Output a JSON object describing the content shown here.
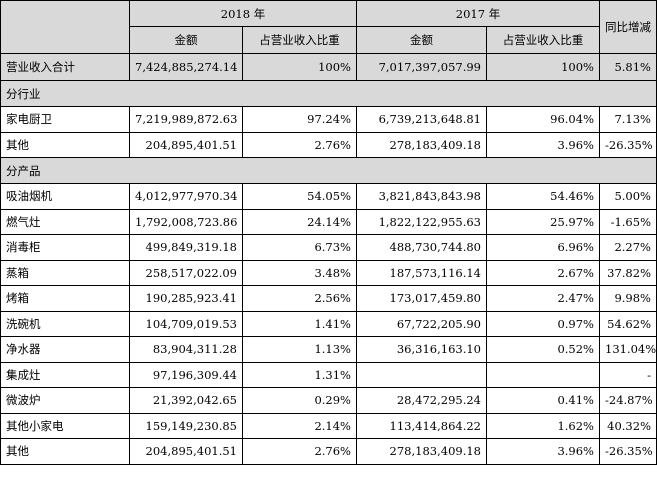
{
  "header": {
    "year_2018": "2018 年",
    "year_2017": "2017 年",
    "yoy_change": "同比增减",
    "amount": "金额",
    "ratio": "占营业收入比重"
  },
  "total": {
    "label": "营业收入合计",
    "amount_2018": "7,424,885,274.14",
    "ratio_2018": "100%",
    "amount_2017": "7,017,397,057.99",
    "ratio_2017": "100%",
    "change": "5.81%"
  },
  "sections": [
    {
      "title": "分行业",
      "rows": [
        {
          "label": "家电厨卫",
          "amount_2018": "7,219,989,872.63",
          "ratio_2018": "97.24%",
          "amount_2017": "6,739,213,648.81",
          "ratio_2017": "96.04%",
          "change": "7.13%"
        },
        {
          "label": "其他",
          "amount_2018": "204,895,401.51",
          "ratio_2018": "2.76%",
          "amount_2017": "278,183,409.18",
          "ratio_2017": "3.96%",
          "change": "-26.35%"
        }
      ]
    },
    {
      "title": "分产品",
      "rows": [
        {
          "label": "吸油烟机",
          "amount_2018": "4,012,977,970.34",
          "ratio_2018": "54.05%",
          "amount_2017": "3,821,843,843.98",
          "ratio_2017": "54.46%",
          "change": "5.00%"
        },
        {
          "label": "燃气灶",
          "amount_2018": "1,792,008,723.86",
          "ratio_2018": "24.14%",
          "amount_2017": "1,822,122,955.63",
          "ratio_2017": "25.97%",
          "change": "-1.65%"
        },
        {
          "label": "消毒柜",
          "amount_2018": "499,849,319.18",
          "ratio_2018": "6.73%",
          "amount_2017": "488,730,744.80",
          "ratio_2017": "6.96%",
          "change": "2.27%"
        },
        {
          "label": "蒸箱",
          "amount_2018": "258,517,022.09",
          "ratio_2018": "3.48%",
          "amount_2017": "187,573,116.14",
          "ratio_2017": "2.67%",
          "change": "37.82%"
        },
        {
          "label": "烤箱",
          "amount_2018": "190,285,923.41",
          "ratio_2018": "2.56%",
          "amount_2017": "173,017,459.80",
          "ratio_2017": "2.47%",
          "change": "9.98%"
        },
        {
          "label": "洗碗机",
          "amount_2018": "104,709,019.53",
          "ratio_2018": "1.41%",
          "amount_2017": "67,722,205.90",
          "ratio_2017": "0.97%",
          "change": "54.62%"
        },
        {
          "label": "净水器",
          "amount_2018": "83,904,311.28",
          "ratio_2018": "1.13%",
          "amount_2017": "36,316,163.10",
          "ratio_2017": "0.52%",
          "change": "131.04%"
        },
        {
          "label": "集成灶",
          "amount_2018": "97,196,309.44",
          "ratio_2018": "1.31%",
          "amount_2017": "",
          "ratio_2017": "",
          "change": "-"
        },
        {
          "label": "微波炉",
          "amount_2018": "21,392,042.65",
          "ratio_2018": "0.29%",
          "amount_2017": "28,472,295.24",
          "ratio_2017": "0.41%",
          "change": "-24.87%"
        },
        {
          "label": "其他小家电",
          "amount_2018": "159,149,230.85",
          "ratio_2018": "2.14%",
          "amount_2017": "113,414,864.22",
          "ratio_2017": "1.62%",
          "change": "40.32%"
        },
        {
          "label": "其他",
          "amount_2018": "204,895,401.51",
          "ratio_2018": "2.76%",
          "amount_2017": "278,183,409.18",
          "ratio_2017": "3.96%",
          "change": "-26.35%"
        }
      ]
    }
  ]
}
